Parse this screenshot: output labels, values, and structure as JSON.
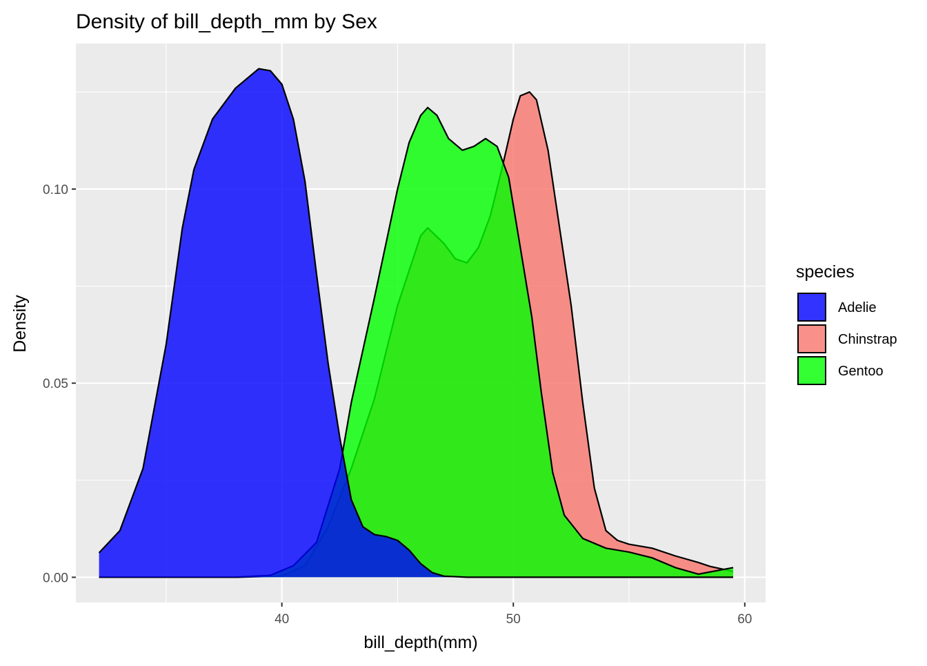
{
  "chart_data": {
    "type": "area",
    "title": "Density of bill_depth_mm by Sex",
    "xlabel": "bill_depth(mm)",
    "ylabel": "Density",
    "xlim": [
      31.1,
      60.9
    ],
    "ylim": [
      -0.0065,
      0.1375
    ],
    "x_ticks": [
      40,
      50,
      60
    ],
    "x_tick_labels": [
      "40",
      "50",
      "60"
    ],
    "x_minor_ticks": [
      35,
      45,
      55
    ],
    "y_ticks": [
      0.0,
      0.05,
      0.1
    ],
    "y_tick_labels": [
      "0.00",
      "0.05",
      "0.10"
    ],
    "y_minor_ticks": [
      0.025,
      0.075,
      0.125
    ],
    "grid": true,
    "background": "#EBEBEB",
    "legend": {
      "title": "species",
      "position": "right",
      "entries": [
        "Adelie",
        "Chinstrap",
        "Gentoo"
      ]
    },
    "fill_opacity": 0.8,
    "series": [
      {
        "name": "Chinstrap",
        "color": "#F8766D",
        "points": [
          [
            32.1,
            0
          ],
          [
            35,
            0
          ],
          [
            38,
            0
          ],
          [
            40,
            0.0003
          ],
          [
            41,
            0.003
          ],
          [
            42,
            0.013
          ],
          [
            43,
            0.028
          ],
          [
            44,
            0.046
          ],
          [
            45,
            0.07
          ],
          [
            46,
            0.088
          ],
          [
            46.3,
            0.09
          ],
          [
            47,
            0.086
          ],
          [
            47.5,
            0.082
          ],
          [
            48,
            0.081
          ],
          [
            48.5,
            0.085
          ],
          [
            49,
            0.093
          ],
          [
            49.5,
            0.105
          ],
          [
            50,
            0.118
          ],
          [
            50.3,
            0.124
          ],
          [
            50.7,
            0.125
          ],
          [
            51,
            0.123
          ],
          [
            51.5,
            0.11
          ],
          [
            52,
            0.09
          ],
          [
            52.5,
            0.07
          ],
          [
            53,
            0.045
          ],
          [
            53.5,
            0.023
          ],
          [
            54,
            0.012
          ],
          [
            54.5,
            0.0095
          ],
          [
            55,
            0.0085
          ],
          [
            56,
            0.0075
          ],
          [
            57,
            0.0055
          ],
          [
            58,
            0.0038
          ],
          [
            58.5,
            0.0028
          ],
          [
            59.5,
            0.0015
          ]
        ]
      },
      {
        "name": "Gentoo",
        "color": "#00FF00",
        "points": [
          [
            32.1,
            0
          ],
          [
            38,
            0
          ],
          [
            39.5,
            0.0005
          ],
          [
            40.5,
            0.003
          ],
          [
            41.5,
            0.009
          ],
          [
            42.5,
            0.028
          ],
          [
            43,
            0.045
          ],
          [
            44,
            0.072
          ],
          [
            45,
            0.1
          ],
          [
            45.5,
            0.112
          ],
          [
            46,
            0.119
          ],
          [
            46.3,
            0.121
          ],
          [
            46.7,
            0.119
          ],
          [
            47.2,
            0.113
          ],
          [
            47.8,
            0.11
          ],
          [
            48.3,
            0.111
          ],
          [
            48.8,
            0.113
          ],
          [
            49.3,
            0.111
          ],
          [
            49.8,
            0.103
          ],
          [
            50.3,
            0.085
          ],
          [
            50.8,
            0.067
          ],
          [
            51.2,
            0.048
          ],
          [
            51.7,
            0.027
          ],
          [
            52.2,
            0.016
          ],
          [
            53,
            0.01
          ],
          [
            54,
            0.0075
          ],
          [
            55,
            0.0065
          ],
          [
            56,
            0.005
          ],
          [
            57,
            0.0025
          ],
          [
            58,
            0.0008
          ],
          [
            59.5,
            0.0025
          ]
        ]
      },
      {
        "name": "Adelie",
        "color": "#0000FF",
        "points": [
          [
            32.1,
            0.0063
          ],
          [
            33,
            0.012
          ],
          [
            34,
            0.028
          ],
          [
            35,
            0.06
          ],
          [
            35.7,
            0.09
          ],
          [
            36.2,
            0.105
          ],
          [
            37,
            0.118
          ],
          [
            38,
            0.126
          ],
          [
            39,
            0.131
          ],
          [
            39.5,
            0.1305
          ],
          [
            40,
            0.127
          ],
          [
            40.5,
            0.118
          ],
          [
            41,
            0.102
          ],
          [
            41.5,
            0.078
          ],
          [
            42,
            0.055
          ],
          [
            42.5,
            0.036
          ],
          [
            43,
            0.02
          ],
          [
            43.5,
            0.013
          ],
          [
            44,
            0.011
          ],
          [
            44.5,
            0.0105
          ],
          [
            45,
            0.0095
          ],
          [
            45.5,
            0.007
          ],
          [
            46,
            0.0035
          ],
          [
            46.5,
            0.0012
          ],
          [
            47,
            0.0003
          ],
          [
            48,
            0
          ],
          [
            59.5,
            0
          ]
        ]
      }
    ]
  }
}
